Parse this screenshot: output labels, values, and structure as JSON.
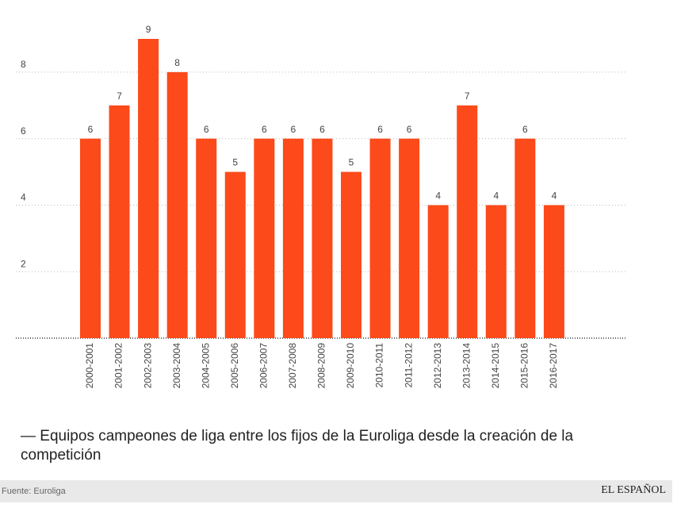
{
  "chart_data": {
    "type": "bar",
    "categories": [
      "2000-2001",
      "2001-2002",
      "2002-2003",
      "2003-2004",
      "2004-2005",
      "2005-2006",
      "2006-2007",
      "2007-2008",
      "2008-2009",
      "2009-2010",
      "2010-2011",
      "2011-2012",
      "2012-2013",
      "2013-2014",
      "2014-2015",
      "2015-2016",
      "2016-2017"
    ],
    "values": [
      6,
      7,
      9,
      8,
      6,
      5,
      6,
      6,
      6,
      5,
      6,
      6,
      4,
      7,
      4,
      6,
      4
    ],
    "color": "#fc4a1a",
    "ylim": [
      0,
      9
    ],
    "yticks": [
      2,
      4,
      6,
      8
    ],
    "grid": true,
    "caption": "— Equipos campeones de liga entre los fijos de la Euroliga desde la creación de la competición",
    "source": "Fuente: Euroliga",
    "brand": "EL ESPAÑOL"
  }
}
